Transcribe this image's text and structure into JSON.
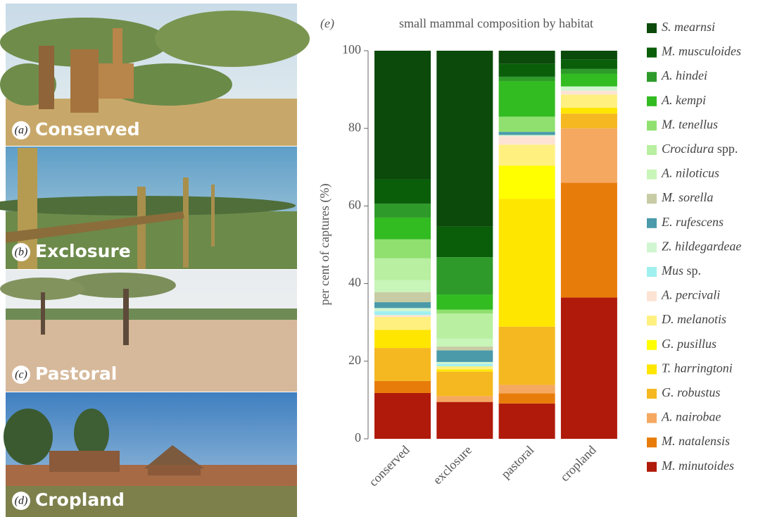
{
  "photos": [
    {
      "letter": "(a)",
      "label": "Conserved"
    },
    {
      "letter": "(b)",
      "label": "Exclosure"
    },
    {
      "letter": "(c)",
      "label": "Pastoral"
    },
    {
      "letter": "(d)",
      "label": "Cropland"
    }
  ],
  "chart_data": {
    "type": "stacked_bar",
    "panel_label": "(e)",
    "title": "small mammal composition by habitat",
    "y_label": "per cent of captures (%)",
    "categories": [
      "conserved",
      "exclosure",
      "pastoral",
      "cropland"
    ],
    "ylim": [
      0,
      100
    ],
    "yticks": [
      0,
      20,
      40,
      60,
      80,
      100
    ],
    "grid": false,
    "series": [
      {
        "name": "M. minutoides",
        "color": "#b01a0a",
        "values": [
          11.8,
          9.5,
          9.1,
          36.4
        ]
      },
      {
        "name": "M. natalensis",
        "color": "#e87c0a",
        "values": [
          3.1,
          0,
          2.6,
          29.6
        ]
      },
      {
        "name": "A. nairobae",
        "color": "#f5a860",
        "values": [
          0,
          1.5,
          2.2,
          14.0
        ]
      },
      {
        "name": "G. robustus",
        "color": "#f5b820",
        "values": [
          8.5,
          6.3,
          15.0,
          3.8
        ]
      },
      {
        "name": "T. harringtoni",
        "color": "#ffe600",
        "values": [
          4.7,
          0.6,
          32.9,
          1.5
        ]
      },
      {
        "name": "G. pusillus",
        "color": "#ffff00",
        "values": [
          0,
          0,
          8.6,
          0
        ]
      },
      {
        "name": "D. melanotis",
        "color": "#fff080",
        "values": [
          3.3,
          0.8,
          5.4,
          3.4
        ]
      },
      {
        "name": "A. percivali",
        "color": "#fde3d3",
        "values": [
          0.5,
          0,
          2.2,
          1.0
        ]
      },
      {
        "name": "Mus sp.",
        "color": "#a0f0f0",
        "values": [
          1.0,
          0.6,
          0,
          0
        ]
      },
      {
        "name": "Z. hildegardeae",
        "color": "#d0f5d0",
        "values": [
          0.8,
          0.5,
          0.3,
          1.1
        ]
      },
      {
        "name": "E. rufescens",
        "color": "#4a9aaa",
        "values": [
          1.5,
          3.0,
          0.8,
          0
        ]
      },
      {
        "name": "M. sorella",
        "color": "#c8cca4",
        "values": [
          2.6,
          1.0,
          0,
          0
        ]
      },
      {
        "name": "A. niloticus",
        "color": "#c8f5b8",
        "values": [
          3.1,
          2.0,
          0,
          0
        ]
      },
      {
        "name": "Crocidura spp.",
        "color": "#b8efa0",
        "values": [
          5.6,
          6.5,
          0,
          0
        ]
      },
      {
        "name": "M. tenellus",
        "color": "#90e070",
        "values": [
          4.9,
          1.0,
          3.9,
          0
        ]
      },
      {
        "name": "A. kempi",
        "color": "#33bb22",
        "values": [
          5.6,
          3.9,
          9.2,
          3.3
        ]
      },
      {
        "name": "A. hindei",
        "color": "#2e9a2a",
        "values": [
          3.6,
          9.6,
          1.1,
          1.2
        ]
      },
      {
        "name": "M. musculoides",
        "color": "#0a5e0a",
        "values": [
          6.2,
          7.9,
          3.3,
          2.5
        ]
      },
      {
        "name": "S. mearnsi",
        "color": "#0b4a0b",
        "values": [
          33.2,
          45.3,
          3.4,
          2.2
        ]
      }
    ]
  }
}
